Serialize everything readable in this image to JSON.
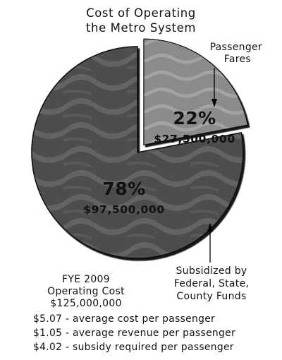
{
  "chart_data": {
    "type": "pie",
    "title_lines": [
      "Cost of Operating",
      "the Metro System"
    ],
    "slices": [
      {
        "name_lines": [
          "Passenger",
          "Fares"
        ],
        "value": 22,
        "percent_label": "22%",
        "amount_label": "$27,500,000",
        "exploded": true,
        "color": "#8e8e8e"
      },
      {
        "name_lines": [
          "Subsidized by",
          "Federal, State,",
          "County Funds"
        ],
        "value": 78,
        "percent_label": "78%",
        "amount_label": "$97,500,000",
        "exploded": false,
        "color": "#4f4f4f"
      }
    ],
    "total_lines": [
      "FYE 2009",
      "Operating Cost",
      "$125,000,000"
    ],
    "notes": [
      "$5.07 - average cost per passenger",
      "$1.05 - average revenue per passenger",
      "$4.02 - subsidy required per passenger"
    ]
  }
}
